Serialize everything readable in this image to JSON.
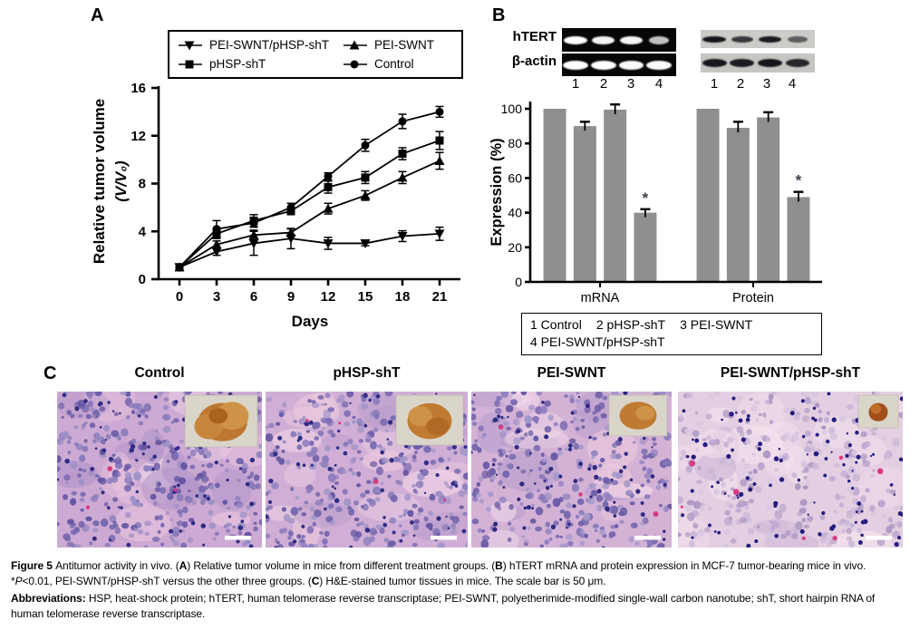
{
  "panelA": {
    "label": "A"
  },
  "panelB": {
    "label": "B",
    "blots": {
      "row_labels": [
        "hTERT",
        "β-actin"
      ],
      "lanes": [
        "1",
        "2",
        "3",
        "4"
      ],
      "gel_mrna": {
        "htert": [
          1,
          0.9,
          0.92,
          0.45
        ],
        "bactin": [
          1,
          1,
          0.95,
          0.95
        ]
      },
      "blot_protein": {
        "htert": [
          1,
          0.7,
          0.95,
          0.4
        ],
        "bactin": [
          1,
          0.95,
          1,
          0.85
        ]
      }
    },
    "legend": {
      "items": [
        "1 Control",
        "2 pHSP-shT",
        "3 PEI-SWNT",
        "4 PEI-SWNT/pHSP-shT"
      ]
    }
  },
  "panelC": {
    "label": "C",
    "panels": [
      {
        "title": "Control"
      },
      {
        "title": "pHSP-shT"
      },
      {
        "title": "PEI-SWNT"
      },
      {
        "title": "PEI-SWNT/pHSP-shT"
      }
    ],
    "scale_bar_note": "50 μm"
  },
  "chart_data": [
    {
      "type": "line",
      "title": "",
      "xlabel": "Days",
      "ylabel_lines": [
        "Relative tumor volume",
        "(V/V₀)"
      ],
      "x": [
        0,
        3,
        6,
        9,
        12,
        15,
        18,
        21
      ],
      "yticks": [
        0,
        4,
        8,
        12,
        16
      ],
      "ylim": [
        0,
        16
      ],
      "legend_position": "top",
      "series": [
        {
          "name": "PEI-SWNT/pHSP-shT",
          "marker": "triangle-down",
          "values": [
            1,
            2.3,
            3.0,
            3.4,
            3.0,
            3.0,
            3.6,
            3.8
          ],
          "errors": [
            0,
            0.3,
            1.0,
            0.85,
            0.5,
            0.2,
            0.45,
            0.55
          ]
        },
        {
          "name": "pHSP-shT",
          "marker": "square",
          "values": [
            1,
            3.8,
            4.9,
            5.7,
            7.7,
            8.5,
            10.5,
            11.6
          ],
          "errors": [
            0,
            0.4,
            0.5,
            0.3,
            0.5,
            0.5,
            0.5,
            0.75
          ]
        },
        {
          "name": "PEI-SWNT",
          "marker": "triangle-up",
          "values": [
            1,
            2.9,
            3.7,
            3.9,
            5.9,
            7.0,
            8.5,
            9.9
          ],
          "errors": [
            0,
            0.3,
            0.4,
            0.3,
            0.45,
            0.4,
            0.5,
            0.7
          ]
        },
        {
          "name": "Control",
          "marker": "circle",
          "values": [
            1,
            4.2,
            4.7,
            6.0,
            8.6,
            11.2,
            13.2,
            14.0
          ],
          "errors": [
            0,
            0.7,
            0.35,
            0.35,
            0.3,
            0.5,
            0.6,
            0.45
          ]
        }
      ]
    },
    {
      "type": "bar",
      "ylabel": "Expression (%)",
      "categories": [
        "mRNA",
        "Protein"
      ],
      "yticks": [
        0,
        20,
        40,
        60,
        80,
        100
      ],
      "ylim": [
        0,
        100
      ],
      "bar_color": "#8f8f8f",
      "sig_symbol": "*",
      "series": [
        {
          "name": "Control",
          "values": [
            100,
            100
          ],
          "errors": [
            0,
            0
          ],
          "sig": [
            false,
            false
          ]
        },
        {
          "name": "pHSP-shT",
          "values": [
            90,
            89
          ],
          "errors": [
            2.5,
            3.5
          ],
          "sig": [
            false,
            false
          ]
        },
        {
          "name": "PEI-SWNT",
          "values": [
            99.5,
            95
          ],
          "errors": [
            3,
            3
          ],
          "sig": [
            false,
            false
          ]
        },
        {
          "name": "PEI-SWNT/pHSP-shT",
          "values": [
            40,
            49
          ],
          "errors": [
            2,
            3
          ],
          "sig": [
            true,
            true
          ]
        }
      ]
    }
  ],
  "caption": {
    "main": [
      {
        "text": "Figure 5 ",
        "bold": true
      },
      {
        "text": "Antitumor activity in vivo. ("
      },
      {
        "text": "A",
        "bold": true
      },
      {
        "text": ") Relative tumor volume in mice from different treatment groups. ("
      },
      {
        "text": "B",
        "bold": true
      },
      {
        "text": ") hTERT mRNA and protein expression in MCF-7 tumor-bearing mice in vivo. *"
      },
      {
        "text": "P",
        "italic": true
      },
      {
        "text": "<0.01, PEI-SWNT/pHSP-shT versus the other three groups. ("
      },
      {
        "text": "C",
        "bold": true
      },
      {
        "text": ") H&E-stained tumor tissues in mice. The scale bar is 50 μm."
      }
    ],
    "abbreviations": [
      {
        "text": "Abbreviations: ",
        "bold": true
      },
      {
        "text": "HSP, heat-shock protein; hTERT, human telomerase reverse transcriptase; PEI-SWNT, polyetherimide-modified single-wall carbon nanotube; shT, short hairpin RNA of human telomerase reverse transcriptase."
      }
    ]
  }
}
